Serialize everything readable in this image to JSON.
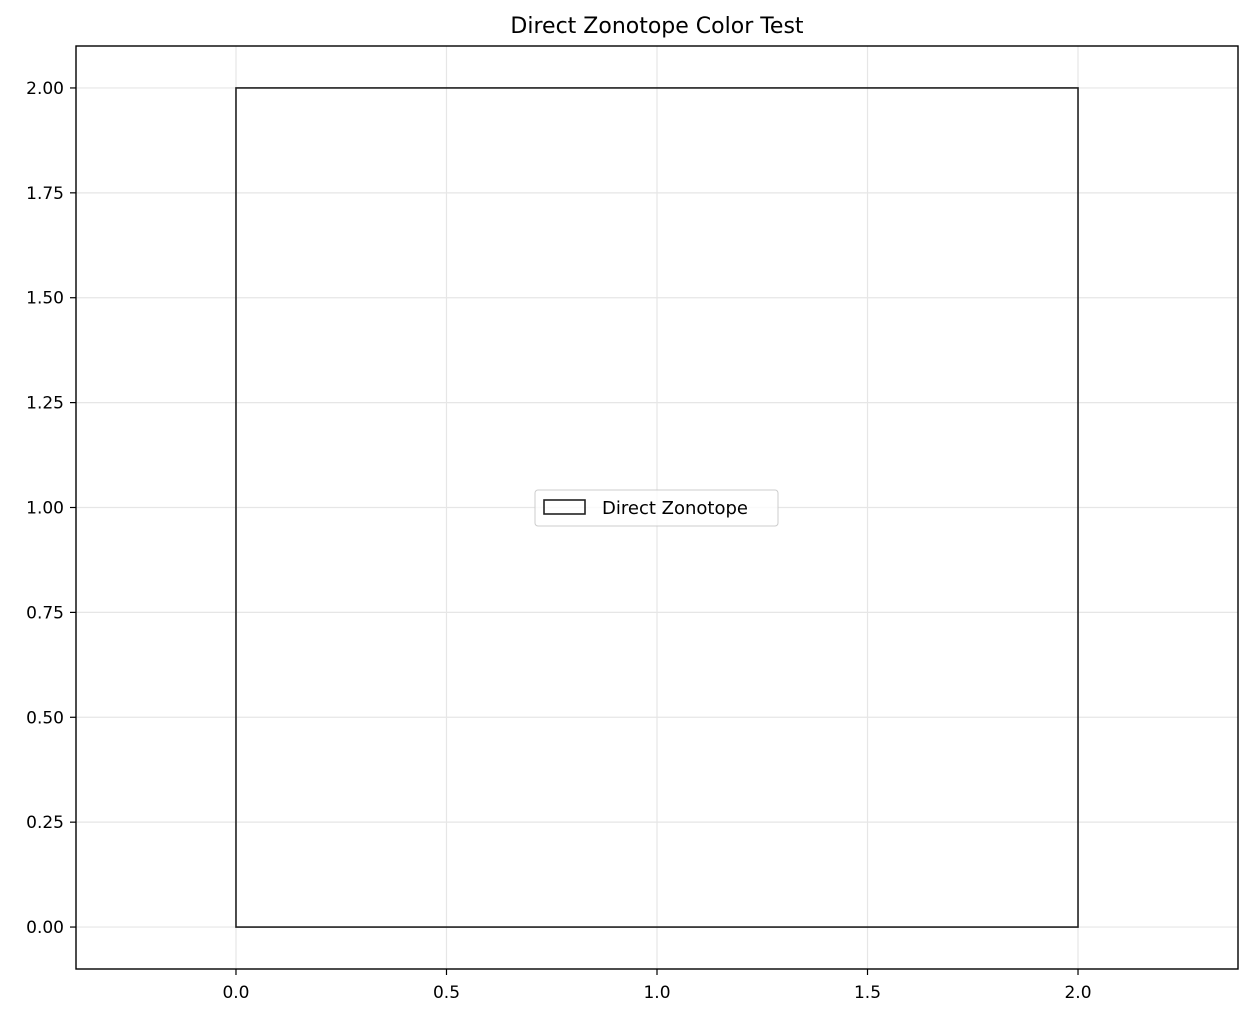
{
  "chart_data": {
    "type": "area",
    "title": "Direct Zonotope Color Test",
    "xlabel": "",
    "ylabel": "",
    "xlim": [
      -0.38,
      2.38
    ],
    "ylim": [
      -0.1,
      2.1
    ],
    "xticks": [
      0.0,
      0.5,
      1.0,
      1.5,
      2.0
    ],
    "xtick_labels": [
      "0.0",
      "0.5",
      "1.0",
      "1.5",
      "2.0"
    ],
    "yticks": [
      0.0,
      0.25,
      0.5,
      0.75,
      1.0,
      1.25,
      1.5,
      1.75,
      2.0
    ],
    "ytick_labels": [
      "0.00",
      "0.25",
      "0.50",
      "0.75",
      "1.00",
      "1.25",
      "1.50",
      "1.75",
      "2.00"
    ],
    "grid": true,
    "legend_position": "center",
    "series": [
      {
        "name": "Direct Zonotope",
        "shape": "polygon",
        "fill": "none",
        "edge_color": "#222222",
        "x": [
          0.0,
          2.0,
          2.0,
          0.0
        ],
        "y": [
          0.0,
          0.0,
          2.0,
          2.0
        ]
      }
    ]
  }
}
